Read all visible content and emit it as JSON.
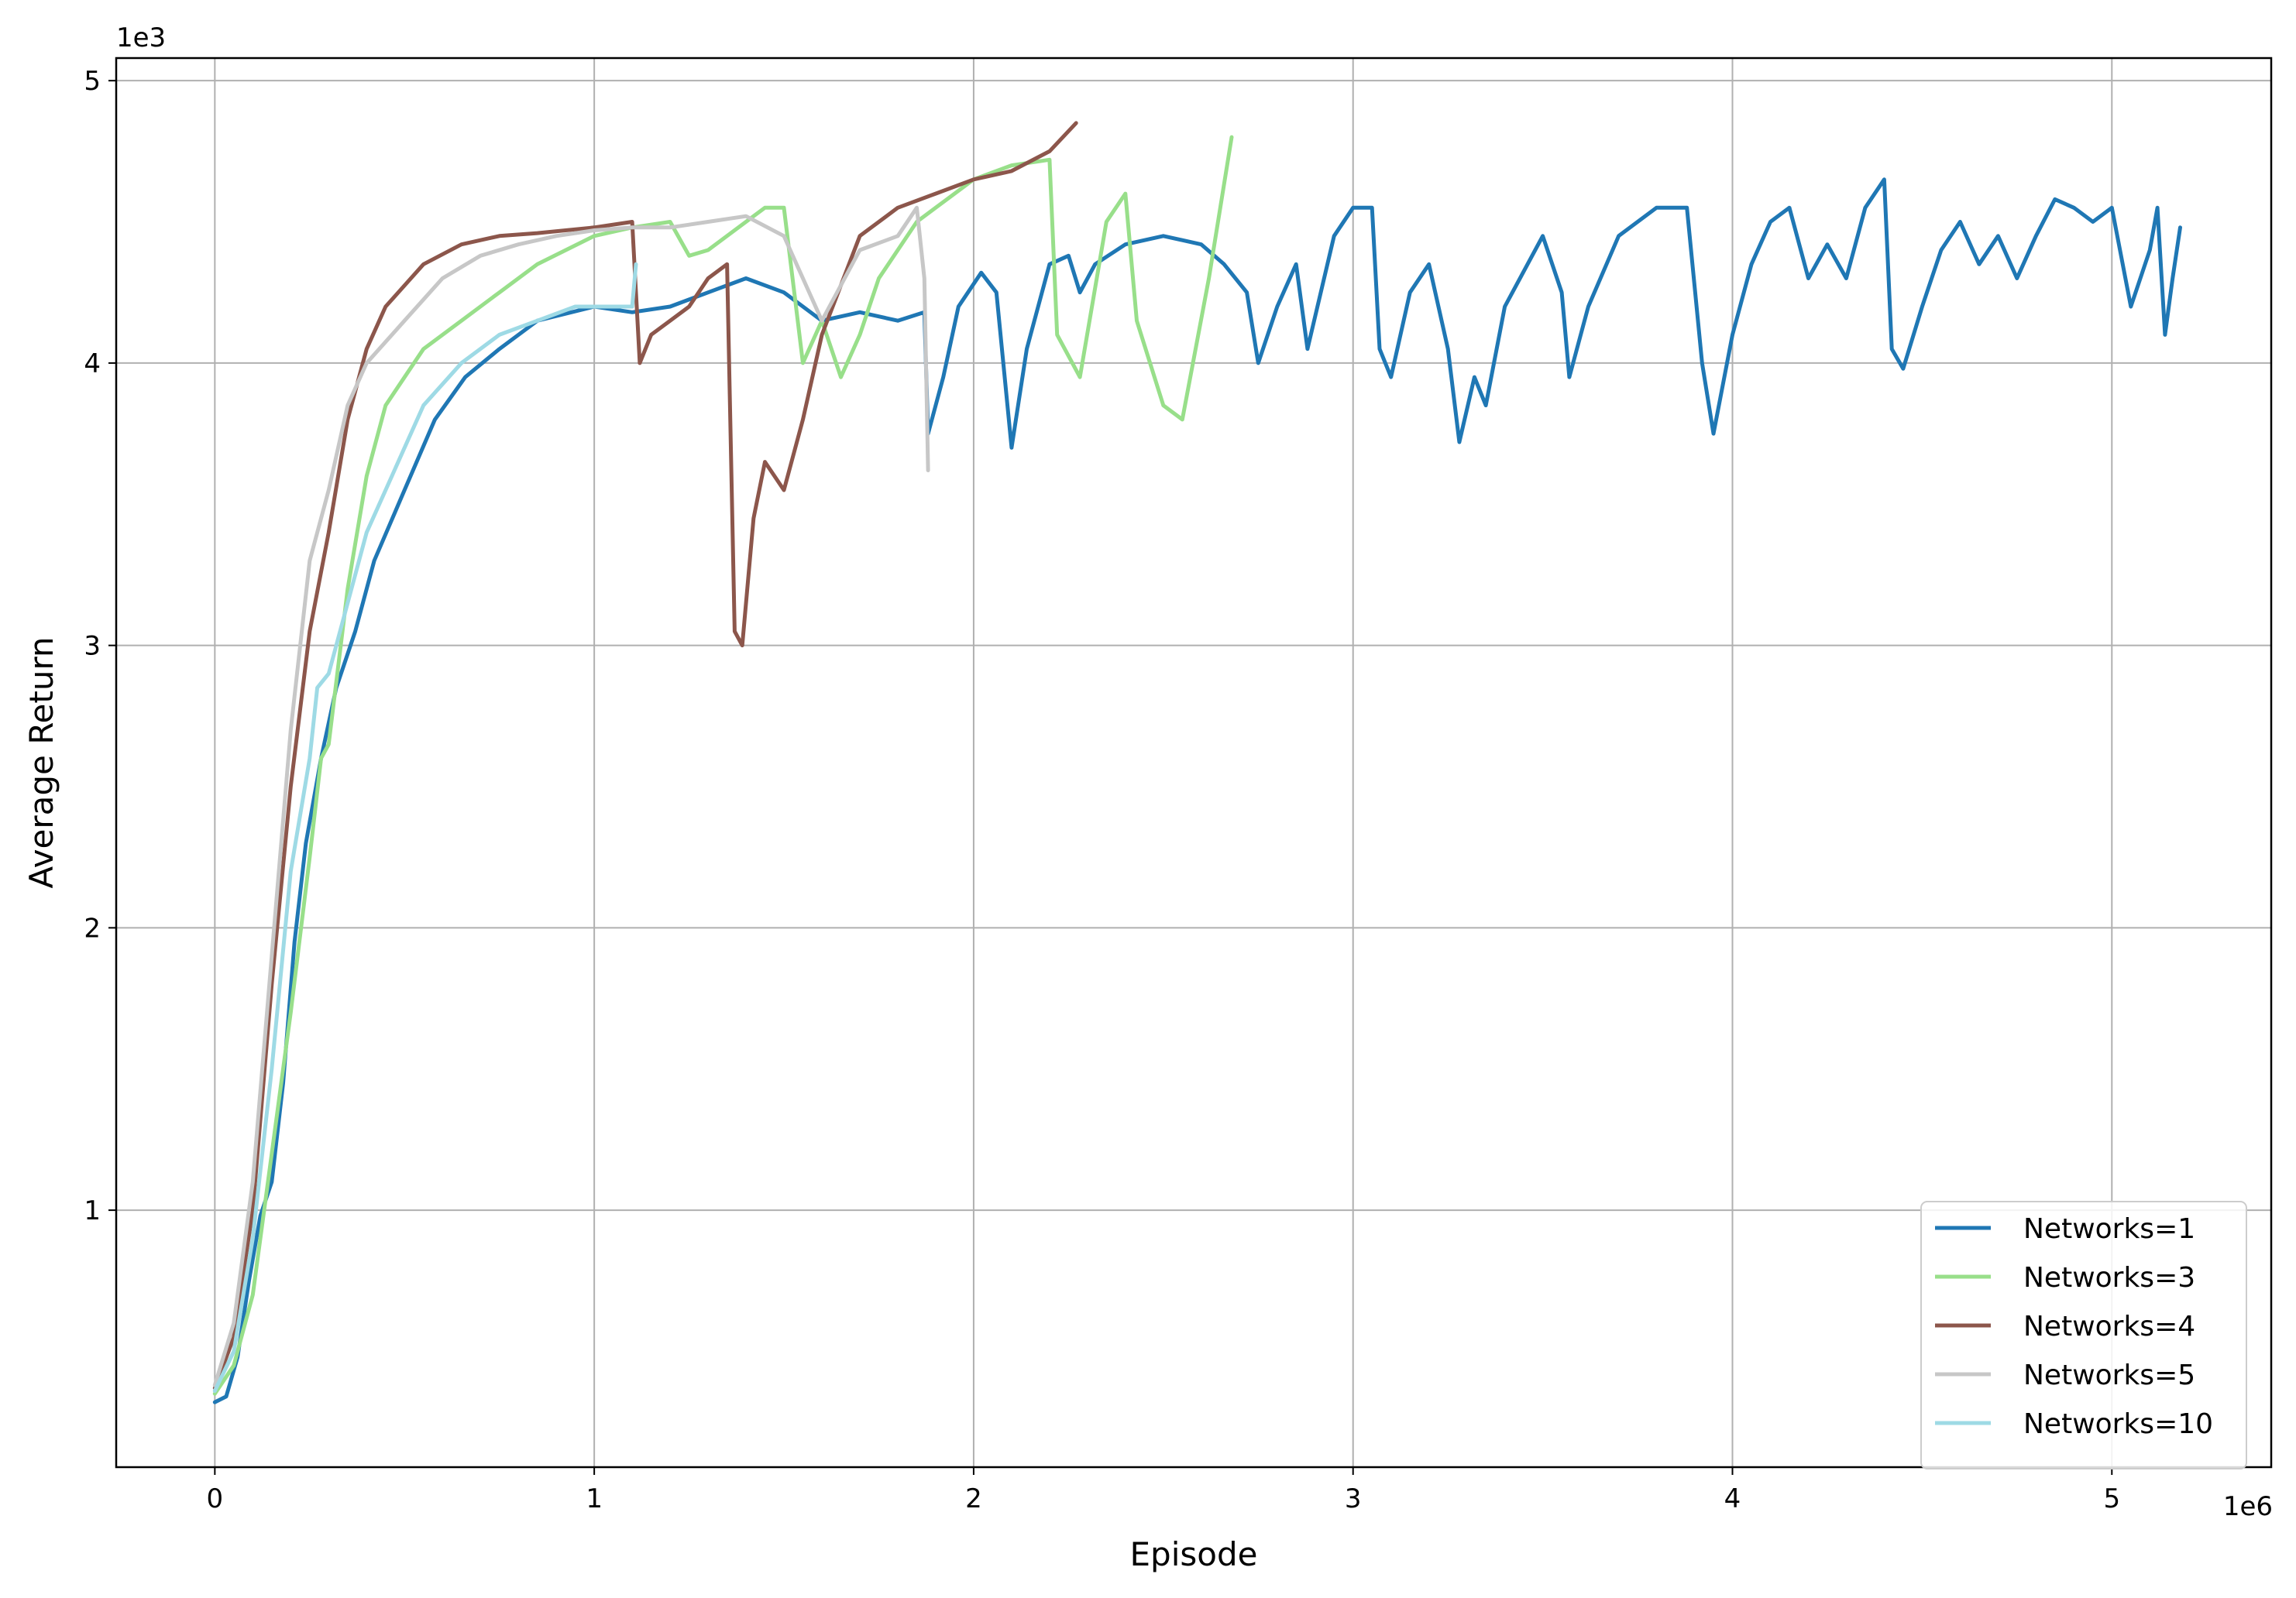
{
  "chart_data": {
    "type": "line",
    "xlabel": "Episode",
    "ylabel": "Average Return",
    "x_multiplier": "1e6",
    "y_multiplier": "1e3",
    "xlim": [
      -0.26,
      5.42
    ],
    "ylim": [
      0.09,
      5.08
    ],
    "x_ticks": [
      0,
      1,
      2,
      3,
      4,
      5
    ],
    "y_ticks": [
      1,
      2,
      3,
      4,
      5
    ],
    "grid": true,
    "legend_position": "lower-right",
    "series": [
      {
        "name": "Networks=1",
        "color": "#1f77b4",
        "points": [
          [
            0.0,
            0.32
          ],
          [
            0.03,
            0.34
          ],
          [
            0.06,
            0.48
          ],
          [
            0.09,
            0.75
          ],
          [
            0.12,
            0.98
          ],
          [
            0.15,
            1.1
          ],
          [
            0.18,
            1.45
          ],
          [
            0.21,
            1.95
          ],
          [
            0.24,
            2.3
          ],
          [
            0.28,
            2.6
          ],
          [
            0.32,
            2.85
          ],
          [
            0.37,
            3.05
          ],
          [
            0.42,
            3.3
          ],
          [
            0.5,
            3.55
          ],
          [
            0.58,
            3.8
          ],
          [
            0.66,
            3.95
          ],
          [
            0.75,
            4.05
          ],
          [
            0.85,
            4.15
          ],
          [
            1.0,
            4.2
          ],
          [
            1.1,
            4.18
          ],
          [
            1.2,
            4.2
          ],
          [
            1.3,
            4.25
          ],
          [
            1.4,
            4.3
          ],
          [
            1.5,
            4.25
          ],
          [
            1.6,
            4.15
          ],
          [
            1.7,
            4.18
          ],
          [
            1.8,
            4.15
          ],
          [
            1.87,
            4.18
          ],
          [
            1.88,
            3.75
          ],
          [
            1.92,
            3.95
          ],
          [
            1.96,
            4.2
          ],
          [
            2.02,
            4.32
          ],
          [
            2.06,
            4.25
          ],
          [
            2.1,
            3.7
          ],
          [
            2.14,
            4.05
          ],
          [
            2.2,
            4.35
          ],
          [
            2.25,
            4.38
          ],
          [
            2.28,
            4.25
          ],
          [
            2.32,
            4.35
          ],
          [
            2.4,
            4.42
          ],
          [
            2.5,
            4.45
          ],
          [
            2.6,
            4.42
          ],
          [
            2.66,
            4.35
          ],
          [
            2.72,
            4.25
          ],
          [
            2.75,
            4.0
          ],
          [
            2.8,
            4.2
          ],
          [
            2.85,
            4.35
          ],
          [
            2.88,
            4.05
          ],
          [
            2.95,
            4.45
          ],
          [
            3.0,
            4.55
          ],
          [
            3.05,
            4.55
          ],
          [
            3.07,
            4.05
          ],
          [
            3.1,
            3.95
          ],
          [
            3.15,
            4.25
          ],
          [
            3.2,
            4.35
          ],
          [
            3.25,
            4.05
          ],
          [
            3.28,
            3.72
          ],
          [
            3.32,
            3.95
          ],
          [
            3.35,
            3.85
          ],
          [
            3.4,
            4.2
          ],
          [
            3.5,
            4.45
          ],
          [
            3.55,
            4.25
          ],
          [
            3.57,
            3.95
          ],
          [
            3.62,
            4.2
          ],
          [
            3.7,
            4.45
          ],
          [
            3.8,
            4.55
          ],
          [
            3.88,
            4.55
          ],
          [
            3.92,
            4.0
          ],
          [
            3.95,
            3.75
          ],
          [
            4.0,
            4.1
          ],
          [
            4.05,
            4.35
          ],
          [
            4.1,
            4.5
          ],
          [
            4.15,
            4.55
          ],
          [
            4.2,
            4.3
          ],
          [
            4.25,
            4.42
          ],
          [
            4.3,
            4.3
          ],
          [
            4.35,
            4.55
          ],
          [
            4.4,
            4.65
          ],
          [
            4.42,
            4.05
          ],
          [
            4.45,
            3.98
          ],
          [
            4.5,
            4.2
          ],
          [
            4.55,
            4.4
          ],
          [
            4.6,
            4.5
          ],
          [
            4.65,
            4.35
          ],
          [
            4.7,
            4.45
          ],
          [
            4.75,
            4.3
          ],
          [
            4.8,
            4.45
          ],
          [
            4.85,
            4.58
          ],
          [
            4.9,
            4.55
          ],
          [
            4.95,
            4.5
          ],
          [
            5.0,
            4.55
          ],
          [
            5.05,
            4.2
          ],
          [
            5.1,
            4.4
          ],
          [
            5.12,
            4.55
          ],
          [
            5.14,
            4.1
          ],
          [
            5.16,
            4.3
          ],
          [
            5.18,
            4.48
          ]
        ]
      },
      {
        "name": "Networks=3",
        "color": "#98df8a",
        "points": [
          [
            0.0,
            0.35
          ],
          [
            0.05,
            0.45
          ],
          [
            0.1,
            0.7
          ],
          [
            0.15,
            1.2
          ],
          [
            0.2,
            1.7
          ],
          [
            0.25,
            2.25
          ],
          [
            0.28,
            2.6
          ],
          [
            0.3,
            2.65
          ],
          [
            0.35,
            3.2
          ],
          [
            0.4,
            3.6
          ],
          [
            0.45,
            3.85
          ],
          [
            0.55,
            4.05
          ],
          [
            0.65,
            4.15
          ],
          [
            0.75,
            4.25
          ],
          [
            0.85,
            4.35
          ],
          [
            1.0,
            4.45
          ],
          [
            1.1,
            4.48
          ],
          [
            1.2,
            4.5
          ],
          [
            1.25,
            4.38
          ],
          [
            1.3,
            4.4
          ],
          [
            1.4,
            4.5
          ],
          [
            1.45,
            4.55
          ],
          [
            1.5,
            4.55
          ],
          [
            1.55,
            4.0
          ],
          [
            1.6,
            4.15
          ],
          [
            1.65,
            3.95
          ],
          [
            1.7,
            4.1
          ],
          [
            1.75,
            4.3
          ],
          [
            1.8,
            4.4
          ],
          [
            1.85,
            4.5
          ],
          [
            1.9,
            4.55
          ],
          [
            2.0,
            4.65
          ],
          [
            2.1,
            4.7
          ],
          [
            2.2,
            4.72
          ],
          [
            2.22,
            4.1
          ],
          [
            2.28,
            3.95
          ],
          [
            2.35,
            4.5
          ],
          [
            2.4,
            4.6
          ],
          [
            2.43,
            4.15
          ],
          [
            2.5,
            3.85
          ],
          [
            2.55,
            3.8
          ],
          [
            2.62,
            4.3
          ],
          [
            2.68,
            4.8
          ]
        ]
      },
      {
        "name": "Networks=4",
        "color": "#8c564b",
        "points": [
          [
            0.0,
            0.37
          ],
          [
            0.05,
            0.55
          ],
          [
            0.1,
            1.0
          ],
          [
            0.15,
            1.8
          ],
          [
            0.2,
            2.5
          ],
          [
            0.25,
            3.05
          ],
          [
            0.3,
            3.4
          ],
          [
            0.35,
            3.8
          ],
          [
            0.4,
            4.05
          ],
          [
            0.45,
            4.2
          ],
          [
            0.55,
            4.35
          ],
          [
            0.65,
            4.42
          ],
          [
            0.75,
            4.45
          ],
          [
            0.85,
            4.46
          ],
          [
            1.0,
            4.48
          ],
          [
            1.1,
            4.5
          ],
          [
            1.12,
            4.0
          ],
          [
            1.15,
            4.1
          ],
          [
            1.2,
            4.15
          ],
          [
            1.25,
            4.2
          ],
          [
            1.3,
            4.3
          ],
          [
            1.35,
            4.35
          ],
          [
            1.37,
            3.05
          ],
          [
            1.39,
            3.0
          ],
          [
            1.42,
            3.45
          ],
          [
            1.45,
            3.65
          ],
          [
            1.5,
            3.55
          ],
          [
            1.55,
            3.8
          ],
          [
            1.6,
            4.1
          ],
          [
            1.7,
            4.45
          ],
          [
            1.8,
            4.55
          ],
          [
            1.9,
            4.6
          ],
          [
            2.0,
            4.65
          ],
          [
            2.1,
            4.68
          ],
          [
            2.2,
            4.75
          ],
          [
            2.27,
            4.85
          ]
        ]
      },
      {
        "name": "Networks=5",
        "color": "#c7c7c7",
        "points": [
          [
            0.0,
            0.38
          ],
          [
            0.05,
            0.6
          ],
          [
            0.1,
            1.1
          ],
          [
            0.15,
            1.9
          ],
          [
            0.2,
            2.7
          ],
          [
            0.25,
            3.3
          ],
          [
            0.3,
            3.55
          ],
          [
            0.35,
            3.85
          ],
          [
            0.4,
            4.0
          ],
          [
            0.5,
            4.15
          ],
          [
            0.6,
            4.3
          ],
          [
            0.7,
            4.38
          ],
          [
            0.8,
            4.42
          ],
          [
            0.9,
            4.45
          ],
          [
            1.0,
            4.47
          ],
          [
            1.1,
            4.48
          ],
          [
            1.2,
            4.48
          ],
          [
            1.3,
            4.5
          ],
          [
            1.4,
            4.52
          ],
          [
            1.5,
            4.45
          ],
          [
            1.55,
            4.3
          ],
          [
            1.6,
            4.15
          ],
          [
            1.7,
            4.4
          ],
          [
            1.8,
            4.45
          ],
          [
            1.85,
            4.55
          ],
          [
            1.87,
            4.3
          ],
          [
            1.88,
            3.62
          ]
        ]
      },
      {
        "name": "Networks=10",
        "color": "#9edae5",
        "points": [
          [
            0.0,
            0.36
          ],
          [
            0.05,
            0.5
          ],
          [
            0.1,
            0.9
          ],
          [
            0.15,
            1.5
          ],
          [
            0.2,
            2.2
          ],
          [
            0.25,
            2.6
          ],
          [
            0.27,
            2.85
          ],
          [
            0.3,
            2.9
          ],
          [
            0.35,
            3.15
          ],
          [
            0.4,
            3.4
          ],
          [
            0.45,
            3.55
          ],
          [
            0.55,
            3.85
          ],
          [
            0.65,
            4.0
          ],
          [
            0.75,
            4.1
          ],
          [
            0.85,
            4.15
          ],
          [
            0.95,
            4.2
          ],
          [
            1.05,
            4.2
          ],
          [
            1.1,
            4.2
          ],
          [
            1.11,
            4.35
          ]
        ]
      }
    ]
  }
}
